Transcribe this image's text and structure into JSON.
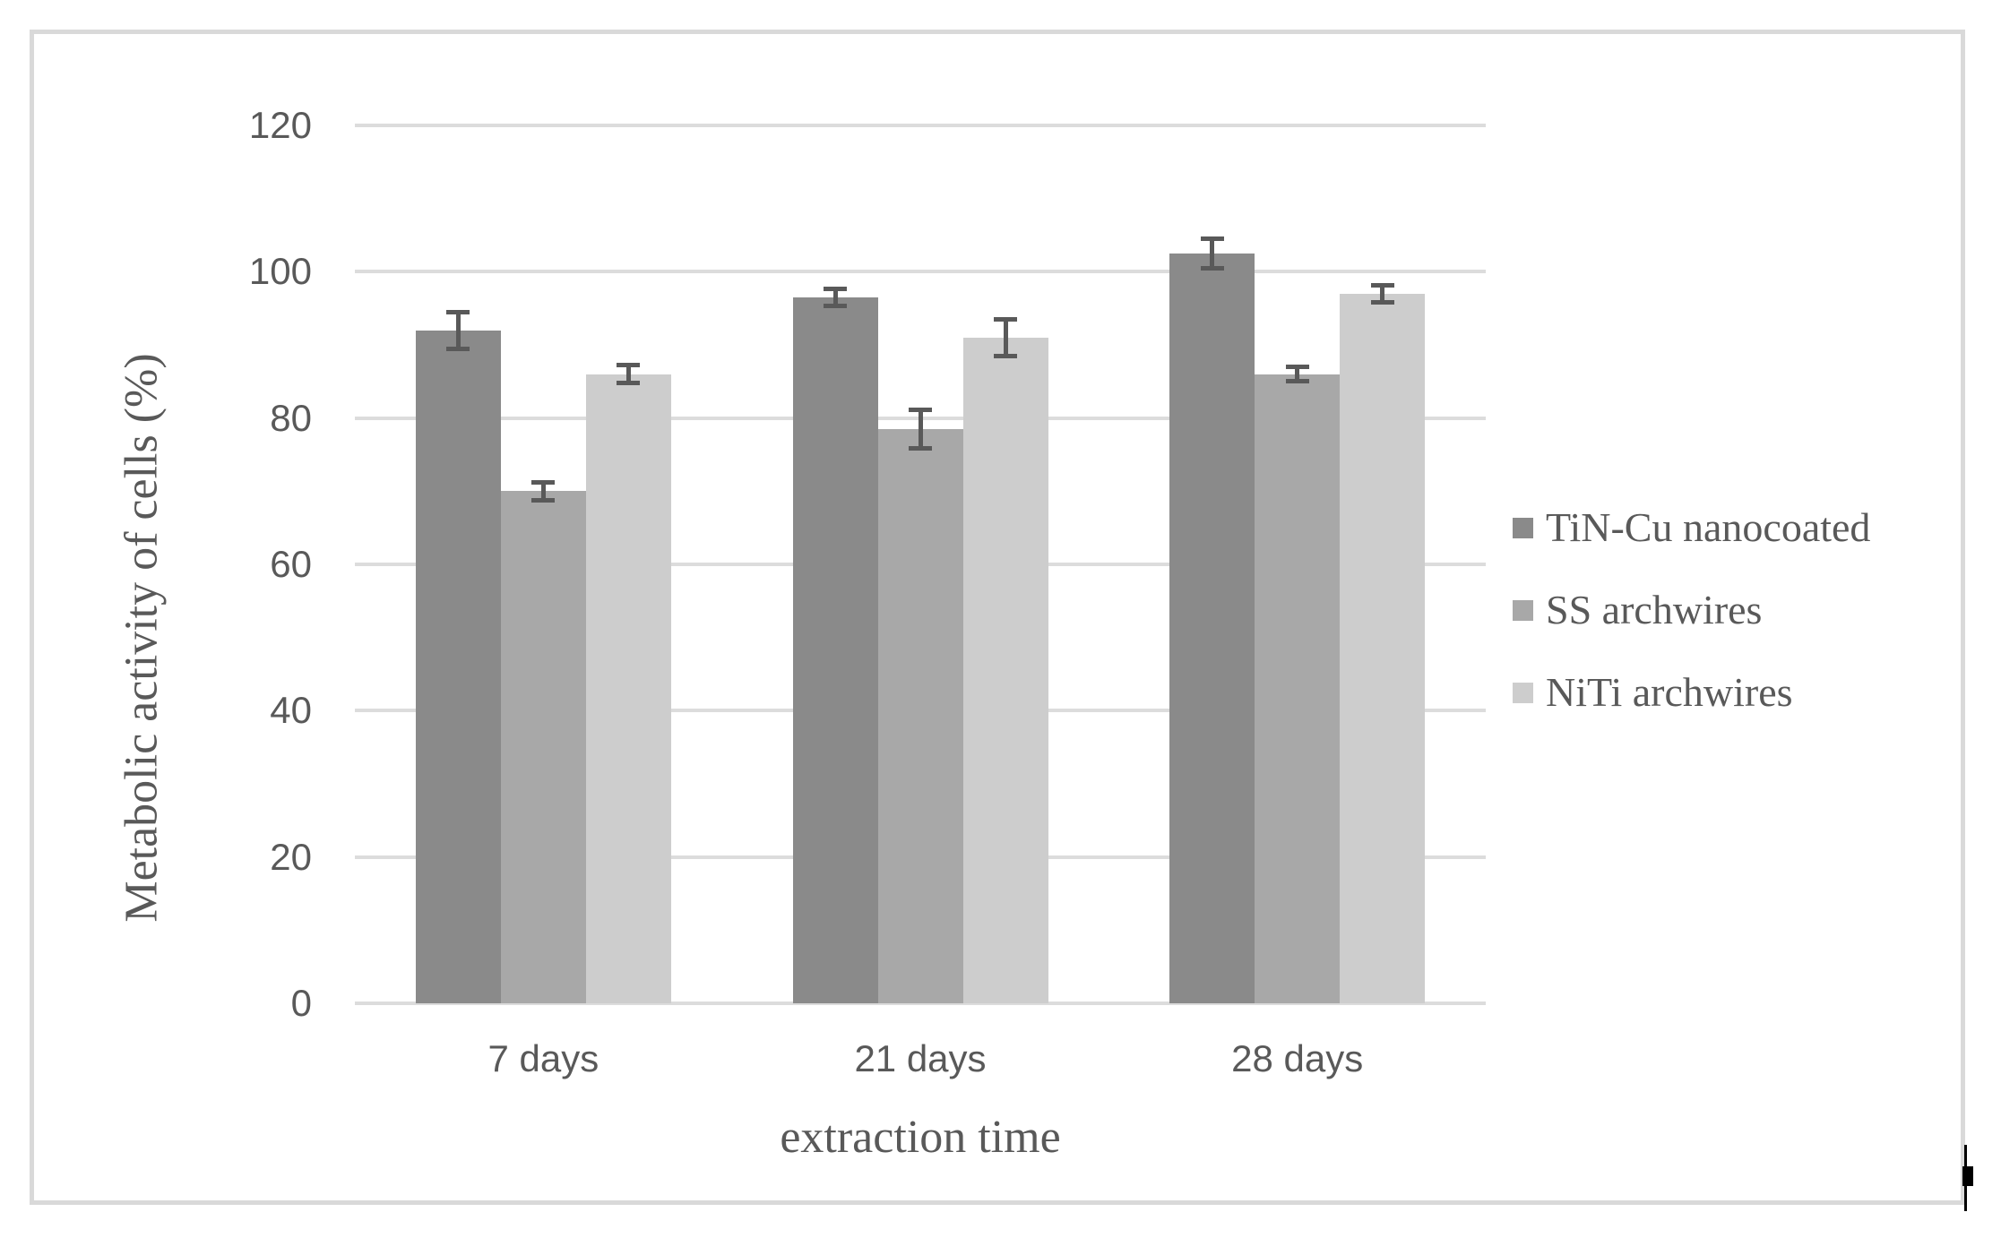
{
  "chart_data": {
    "type": "bar",
    "title": "",
    "xlabel": "extraction time",
    "ylabel": "Metabolic activity of cells (%)",
    "categories": [
      "7 days",
      "21 days",
      "28 days"
    ],
    "series": [
      {
        "name": "TiN-Cu nanocoated",
        "color": "#8a8a8a",
        "values": [
          92,
          96.5,
          102.5
        ],
        "errors": [
          2.5,
          1.2,
          2.0
        ]
      },
      {
        "name": "SS archwires",
        "color": "#a8a8a8",
        "values": [
          70,
          78.5,
          86
        ],
        "errors": [
          1.2,
          2.6,
          1.0
        ]
      },
      {
        "name": "NiTi archwires",
        "color": "#cdcdcd",
        "values": [
          86,
          91,
          97
        ],
        "errors": [
          1.2,
          2.5,
          1.2
        ]
      }
    ],
    "ylim": [
      0,
      120
    ],
    "yticks": [
      0,
      20,
      40,
      60,
      80,
      100,
      120
    ],
    "grid": "horizontal",
    "legend_position": "right"
  },
  "colors": {
    "gridline": "#dcdcdc",
    "text": "#595959",
    "error_bar": "#595959",
    "frame_border": "#d9d9d9",
    "cursor": "#000000"
  }
}
